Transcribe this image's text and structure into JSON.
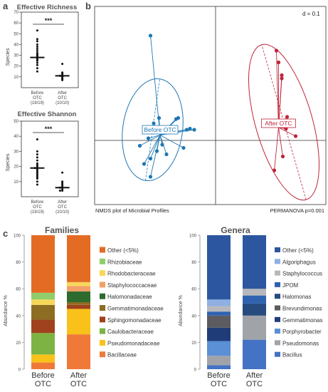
{
  "panels": {
    "a": "a",
    "b": "b",
    "c": "c"
  },
  "chart_data": [
    {
      "id": "richness",
      "type": "scatter",
      "title": "Effective Richness",
      "ylabel": "Species",
      "ylim": [
        0,
        70
      ],
      "yticks": [
        10,
        20,
        30,
        40,
        50,
        60,
        70
      ],
      "significance": "***",
      "groups": [
        {
          "label": "Before",
          "label2": "OTC",
          "n": "(19/19)",
          "mean": 28,
          "values": [
            53,
            45,
            43,
            40,
            38,
            36,
            34,
            32,
            31,
            30,
            29,
            28,
            27,
            26,
            25,
            23,
            21,
            18,
            15
          ]
        },
        {
          "label": "After",
          "label2": "OTC",
          "n": "(10/10)",
          "mean": 11,
          "values": [
            22,
            14,
            13,
            12,
            11,
            11,
            10,
            9,
            8,
            7
          ]
        }
      ]
    },
    {
      "id": "shannon",
      "type": "scatter",
      "title": "Effective Shannon",
      "ylabel": "Species",
      "ylim": [
        0,
        50
      ],
      "yticks": [
        10,
        20,
        30,
        40,
        50
      ],
      "significance": "***",
      "groups": [
        {
          "label": "Before",
          "label2": "OTC",
          "n": "(19/19)",
          "mean": 19,
          "values": [
            38,
            30,
            28,
            26,
            24,
            22,
            21,
            20,
            19,
            19,
            18,
            17,
            16,
            15,
            14,
            13,
            12,
            10,
            8
          ]
        },
        {
          "label": "After",
          "label2": "OTC",
          "n": "(10/10)",
          "mean": 6,
          "values": [
            16,
            10,
            9,
            8,
            7,
            6,
            6,
            5,
            4,
            4
          ]
        }
      ]
    },
    {
      "id": "nmds",
      "type": "scatter",
      "title": "NMDS plot of Microbial Profiles",
      "stat": "PERMANOVA  p=0.001",
      "scale": "d = 0.1",
      "groups": [
        {
          "name": "Before OTC",
          "color": "#1f77b4",
          "centroid": [
            -0.52,
            0.05
          ],
          "points": [
            [
              -0.61,
              0.98
            ],
            [
              -0.71,
              -0.05
            ],
            [
              -0.67,
              -0.22
            ],
            [
              -0.63,
              0.02
            ],
            [
              -0.61,
              -0.17
            ],
            [
              -0.58,
              0.16
            ],
            [
              -0.55,
              -0.1
            ],
            [
              -0.53,
              0.21
            ],
            [
              -0.5,
              -0.04
            ],
            [
              -0.46,
              -0.13
            ],
            [
              -0.43,
              0.12
            ],
            [
              -0.4,
              0.09
            ],
            [
              -0.37,
              0.2
            ],
            [
              -0.35,
              0.21
            ],
            [
              -0.3,
              -0.07
            ],
            [
              -0.27,
              0.1
            ],
            [
              -0.24,
              0.11
            ],
            [
              -0.61,
              -0.34
            ],
            [
              -0.2,
              0.1
            ]
          ]
        },
        {
          "name": "After OTC",
          "color": "#c0243a",
          "centroid": [
            0.59,
            0.12
          ],
          "points": [
            [
              0.57,
              0.84
            ],
            [
              0.59,
              0.73
            ],
            [
              0.62,
              0.61
            ],
            [
              0.62,
              0.58
            ],
            [
              0.67,
              0.18
            ],
            [
              0.66,
              0.11
            ],
            [
              0.75,
              0.04
            ],
            [
              0.67,
              0.22
            ],
            [
              0.63,
              -0.15
            ],
            [
              0.55,
              -0.28
            ]
          ]
        }
      ]
    },
    {
      "id": "families",
      "type": "bar",
      "title": "Families",
      "ylabel": "Abundance %",
      "ylim": [
        0,
        100
      ],
      "yticks": [
        0,
        20,
        40,
        60,
        80,
        100
      ],
      "categories": [
        [
          "Before",
          "OTC"
        ],
        [
          "After",
          "OTC"
        ]
      ],
      "series": [
        {
          "name": "Bacillaceae",
          "color": "#f0793a",
          "values": [
            5,
            26
          ]
        },
        {
          "name": "Pseudomonadaceae",
          "color": "#f8c21a",
          "values": [
            6,
            19
          ]
        },
        {
          "name": "Caulobacteraceae",
          "color": "#7cb342",
          "values": [
            16,
            0
          ]
        },
        {
          "name": "Sphingomonadaceae",
          "color": "#a0421e",
          "values": [
            10,
            3
          ]
        },
        {
          "name": "Gemmatimonadaceae",
          "color": "#8c6d22",
          "values": [
            11,
            2
          ]
        },
        {
          "name": "Halomonadaceae",
          "color": "#2e6b2e",
          "values": [
            0,
            8
          ]
        },
        {
          "name": "Staphylococcaceae",
          "color": "#f2a06a",
          "values": [
            0,
            4
          ]
        },
        {
          "name": "Rhodobacteraceae",
          "color": "#f7d75a",
          "values": [
            4,
            3
          ]
        },
        {
          "name": "Rhizobiaceae",
          "color": "#8fce6a",
          "values": [
            5,
            0
          ]
        },
        {
          "name": "Other (<5%)",
          "color": "#e46b24",
          "values": [
            43,
            35
          ]
        }
      ]
    },
    {
      "id": "genera",
      "type": "bar",
      "title": "Genera",
      "ylabel": "Abundance %",
      "ylim": [
        0,
        100
      ],
      "yticks": [
        0,
        20,
        40,
        60,
        80,
        100
      ],
      "categories": [
        [
          "Before",
          "OTC"
        ],
        [
          "After",
          "OTC"
        ]
      ],
      "series": [
        {
          "name": "Bacillus",
          "color": "#4472c4",
          "values": [
            3,
            22
          ]
        },
        {
          "name": "Pseudomonas",
          "color": "#a0a3a8",
          "values": [
            7,
            18
          ]
        },
        {
          "name": "Porphyrobacter",
          "color": "#5b8fd6",
          "values": [
            11,
            0
          ]
        },
        {
          "name": "Gemmatimonas",
          "color": "#203c78",
          "values": [
            10,
            0
          ]
        },
        {
          "name": "Brevundimonas",
          "color": "#5c5c60",
          "values": [
            9,
            0
          ]
        },
        {
          "name": "Halomonas",
          "color": "#264b7e",
          "values": [
            0,
            9
          ]
        },
        {
          "name": "JPOM",
          "color": "#2f63b0",
          "values": [
            3,
            6
          ]
        },
        {
          "name": "Staphylococcus",
          "color": "#b8b8bc",
          "values": [
            4,
            5
          ]
        },
        {
          "name": "Algoriphagus",
          "color": "#8fb0e0",
          "values": [
            5,
            0
          ]
        },
        {
          "name": "Other (<5%)",
          "color": "#2c57a0",
          "values": [
            48,
            40
          ]
        }
      ]
    }
  ]
}
